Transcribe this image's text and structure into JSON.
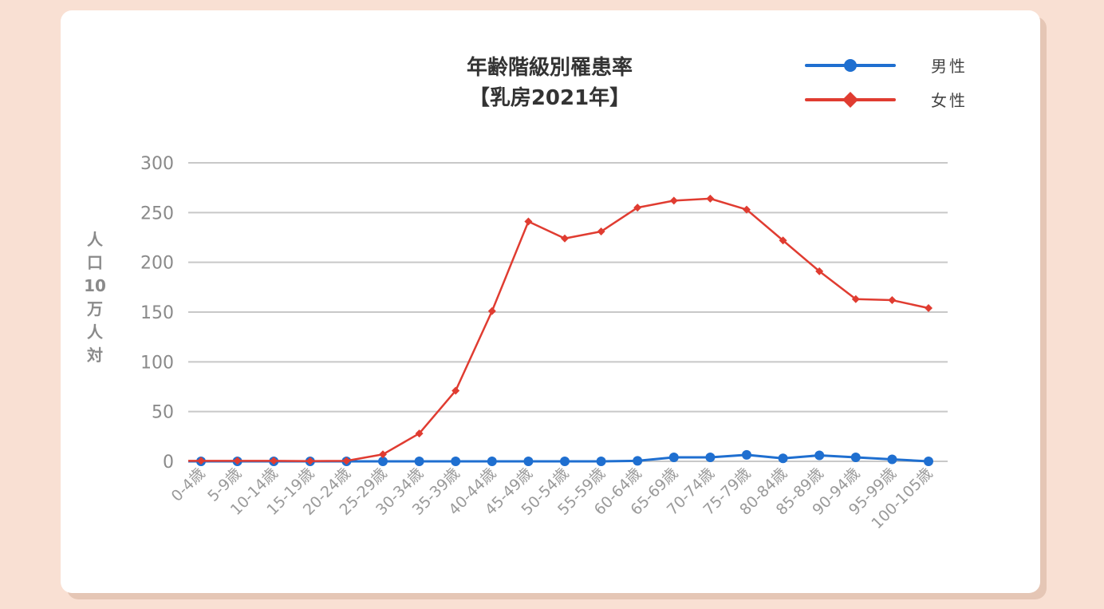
{
  "chart_data": {
    "type": "line",
    "title": "年齢階級別罹患率",
    "subtitle": "【乳房2021年】",
    "xlabel": "",
    "ylabel": "人口10万人対",
    "ylabel_chars": [
      "人",
      "口",
      "10",
      "万",
      "人",
      "対"
    ],
    "ylim": [
      0,
      300
    ],
    "yticks": [
      0,
      50,
      100,
      150,
      200,
      250,
      300
    ],
    "grid": true,
    "legend_position": "top-right",
    "categories": [
      "0-4歳",
      "5-9歳",
      "10-14歳",
      "15-19歳",
      "20-24歳",
      "25-29歳",
      "30-34歳",
      "35-39歳",
      "40-44歳",
      "45-49歳",
      "50-54歳",
      "55-59歳",
      "60-64歳",
      "65-69歳",
      "70-74歳",
      "75-79歳",
      "80-84歳",
      "85-89歳",
      "90-94歳",
      "95-99歳",
      "100-105歳"
    ],
    "series": [
      {
        "name": "男性",
        "color": "#1f6fd0",
        "marker": "circle",
        "values": [
          0,
          0,
          0,
          0,
          0,
          0,
          0,
          0,
          0,
          0,
          0,
          0,
          0.5,
          4,
          4,
          6.5,
          3,
          6,
          4,
          2,
          0
        ]
      },
      {
        "name": "女性",
        "color": "#e03c31",
        "marker": "diamond",
        "values": [
          0.5,
          0.5,
          0.5,
          0.3,
          0.5,
          7,
          28,
          71,
          151,
          241,
          224,
          231,
          255,
          262,
          264,
          253,
          222,
          191,
          163,
          162,
          154
        ]
      }
    ]
  },
  "colors": {
    "page_background": "#f9e0d3",
    "card_shadow": "#e5c6b5",
    "card": "#ffffff",
    "grid": "#c8c8c8",
    "axis_text": "#8a8a8a"
  }
}
